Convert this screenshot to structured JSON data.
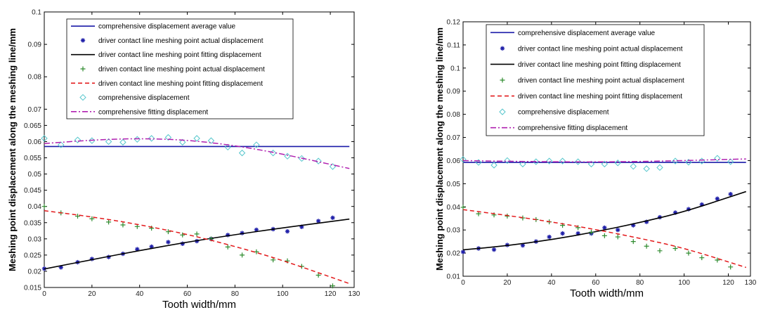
{
  "colors": {
    "average": "#1a1aa8",
    "driver": "#1e1ea8",
    "driver_fit": "#000000",
    "driven": "#2e8b2e",
    "driven_fit": "#e31a1c",
    "comp": "#55c6cc",
    "comp_fit": "#b020b0"
  },
  "chart_data": [
    {
      "type": "scatter",
      "xlabel": "Tooth width/mm",
      "ylabel": "Meshing point displacement along the meshing line/mm",
      "xlim": [
        0,
        130
      ],
      "ylim": [
        0.015,
        0.1
      ],
      "xticks": [
        0,
        20,
        40,
        60,
        80,
        100,
        120,
        130
      ],
      "yticks": [
        0.015,
        0.02,
        0.025,
        0.03,
        0.035,
        0.04,
        0.045,
        0.05,
        0.055,
        0.06,
        0.065,
        0.07,
        0.08,
        0.09,
        0.1
      ],
      "ytick_labels": [
        "0.015",
        "0.02",
        "0.025",
        "0.03",
        "0.035",
        "0.04",
        "0.045",
        "0.05",
        "0.055",
        "0.06",
        "0.065",
        "0.07",
        "0.08",
        "0.09",
        "0.1"
      ],
      "legend_position": "top",
      "series": [
        {
          "name": "comprehensive displacement average value",
          "style": "line",
          "x": [
            0,
            128
          ],
          "y": [
            0.0585,
            0.0585
          ]
        },
        {
          "name": "driver contact line meshing point actual displacement",
          "style": "star",
          "x": [
            0,
            7,
            14,
            20,
            27,
            33,
            39,
            45,
            52,
            58,
            64,
            70,
            77,
            83,
            89,
            96,
            102,
            108,
            115,
            121
          ],
          "y": [
            0.0208,
            0.0212,
            0.0228,
            0.0238,
            0.0244,
            0.0254,
            0.0268,
            0.0276,
            0.029,
            0.0285,
            0.0293,
            0.03,
            0.0312,
            0.0318,
            0.0328,
            0.033,
            0.0323,
            0.0337,
            0.0355,
            0.0365
          ]
        },
        {
          "name": "driver contact line meshing point fitting displacement",
          "style": "line",
          "x": [
            0,
            20,
            40,
            60,
            80,
            100,
            128
          ],
          "y": [
            0.0207,
            0.0236,
            0.0264,
            0.029,
            0.0313,
            0.0334,
            0.0361
          ]
        },
        {
          "name": "driven contact line meshing point actual displacement",
          "style": "plus",
          "x": [
            0,
            7,
            14,
            20,
            27,
            33,
            39,
            45,
            52,
            58,
            64,
            70,
            77,
            83,
            89,
            96,
            102,
            108,
            115,
            121
          ],
          "y": [
            0.04,
            0.038,
            0.037,
            0.0362,
            0.0352,
            0.0343,
            0.0338,
            0.0333,
            0.0322,
            0.0312,
            0.0315,
            0.03,
            0.0275,
            0.025,
            0.026,
            0.0235,
            0.0232,
            0.0215,
            0.0188,
            0.0155
          ]
        },
        {
          "name": "driven contact line meshing point fitting displacement",
          "style": "dashed",
          "x": [
            0,
            20,
            40,
            60,
            80,
            100,
            128
          ],
          "y": [
            0.0387,
            0.0368,
            0.0344,
            0.0314,
            0.0277,
            0.0234,
            0.0162
          ]
        },
        {
          "name": "comprehensive displacement",
          "style": "diamond",
          "x": [
            0,
            7,
            14,
            20,
            27,
            33,
            39,
            45,
            52,
            58,
            64,
            70,
            77,
            83,
            89,
            96,
            102,
            108,
            115,
            121
          ],
          "y": [
            0.061,
            0.059,
            0.0605,
            0.0603,
            0.06,
            0.0598,
            0.0607,
            0.061,
            0.0613,
            0.0598,
            0.061,
            0.0603,
            0.0583,
            0.0565,
            0.059,
            0.0565,
            0.0555,
            0.0548,
            0.054,
            0.0523
          ]
        },
        {
          "name": "comprehensive fitting displacement",
          "style": "dashdot",
          "x": [
            0,
            20,
            40,
            60,
            80,
            100,
            128
          ],
          "y": [
            0.0594,
            0.0605,
            0.061,
            0.0605,
            0.0588,
            0.0562,
            0.0517
          ]
        }
      ]
    },
    {
      "type": "scatter",
      "xlabel": "Tooth width/mm",
      "ylabel": "Meshing point displacement along the meshing line/mm",
      "xlim": [
        0,
        130
      ],
      "ylim": [
        0.01,
        0.12
      ],
      "xticks": [
        0,
        20,
        40,
        60,
        80,
        100,
        120,
        130
      ],
      "yticks": [
        0.01,
        0.02,
        0.03,
        0.04,
        0.05,
        0.06,
        0.07,
        0.08,
        0.09,
        0.1,
        0.11,
        0.12
      ],
      "ytick_labels": [
        "0.01",
        "0.02",
        "0.03",
        "0.04",
        "0.05",
        "0.06",
        "0.07",
        "0.08",
        "0.09",
        "0.1",
        "0.11",
        "0.12"
      ],
      "legend_position": "top",
      "series": [
        {
          "name": "comprehensive displacement average value",
          "style": "line",
          "x": [
            0,
            128
          ],
          "y": [
            0.0592,
            0.0592
          ]
        },
        {
          "name": "driver contact line meshing point actual displacement",
          "style": "star",
          "x": [
            0,
            7,
            14,
            20,
            27,
            33,
            39,
            45,
            52,
            58,
            64,
            70,
            77,
            83,
            89,
            96,
            102,
            108,
            115,
            121
          ],
          "y": [
            0.0205,
            0.022,
            0.0215,
            0.0235,
            0.0233,
            0.025,
            0.027,
            0.0285,
            0.0285,
            0.0285,
            0.031,
            0.03,
            0.032,
            0.0335,
            0.0355,
            0.0375,
            0.039,
            0.041,
            0.0435,
            0.0455
          ]
        },
        {
          "name": "driver contact line meshing point fitting displacement",
          "style": "line",
          "x": [
            0,
            20,
            40,
            60,
            80,
            100,
            128
          ],
          "y": [
            0.0214,
            0.0232,
            0.0258,
            0.0292,
            0.0332,
            0.0378,
            0.0466
          ]
        },
        {
          "name": "driven contact line meshing point actual displacement",
          "style": "plus",
          "x": [
            0,
            7,
            14,
            20,
            27,
            33,
            39,
            45,
            52,
            58,
            64,
            70,
            77,
            83,
            89,
            96,
            102,
            108,
            115,
            121
          ],
          "y": [
            0.0398,
            0.037,
            0.0365,
            0.036,
            0.0352,
            0.0345,
            0.0335,
            0.032,
            0.031,
            0.029,
            0.0275,
            0.027,
            0.025,
            0.023,
            0.021,
            0.022,
            0.02,
            0.018,
            0.017,
            0.014
          ]
        },
        {
          "name": "driven contact line meshing point fitting displacement",
          "style": "dashed",
          "x": [
            0,
            20,
            40,
            60,
            80,
            100,
            128
          ],
          "y": [
            0.0388,
            0.0363,
            0.0335,
            0.0302,
            0.0264,
            0.0222,
            0.0138
          ]
        },
        {
          "name": "comprehensive displacement",
          "style": "diamond",
          "x": [
            0,
            7,
            14,
            20,
            27,
            33,
            39,
            45,
            52,
            58,
            64,
            70,
            77,
            83,
            89,
            96,
            102,
            108,
            115,
            121
          ],
          "y": [
            0.0605,
            0.0592,
            0.058,
            0.06,
            0.0585,
            0.0595,
            0.0598,
            0.0598,
            0.0595,
            0.0585,
            0.0585,
            0.059,
            0.0575,
            0.0565,
            0.057,
            0.0598,
            0.0593,
            0.0598,
            0.061,
            0.0595
          ]
        },
        {
          "name": "comprehensive fitting displacement",
          "style": "dashdot",
          "x": [
            0,
            20,
            40,
            60,
            80,
            100,
            128
          ],
          "y": [
            0.06,
            0.0597,
            0.0595,
            0.0594,
            0.0596,
            0.06,
            0.0607
          ]
        }
      ]
    }
  ]
}
